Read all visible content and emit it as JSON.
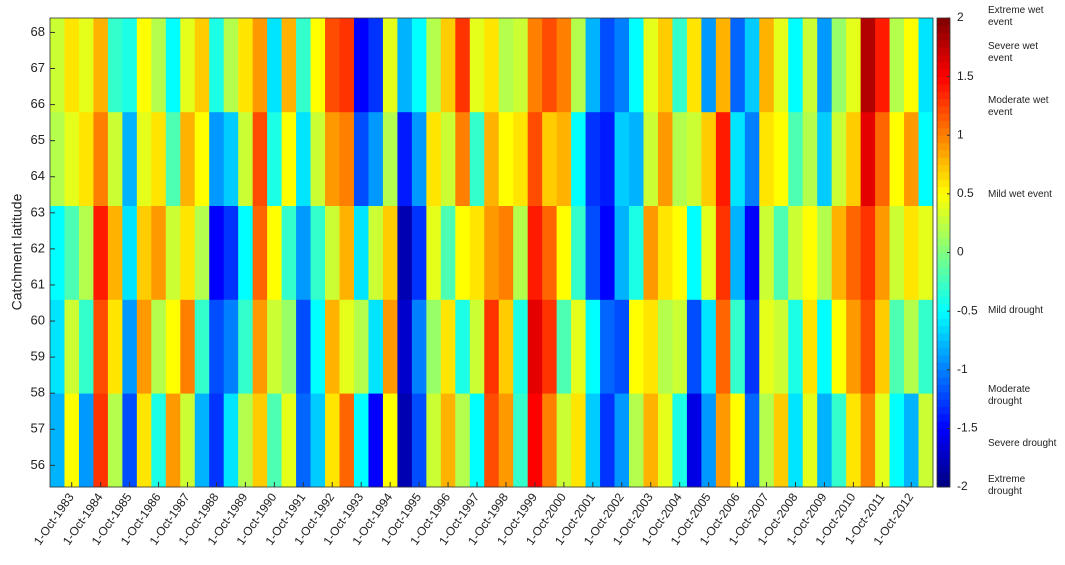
{
  "chart_data": {
    "type": "heatmap",
    "y_label": "Catchment latitude",
    "x": [
      1983.25,
      1983.75,
      1984.25,
      1984.75,
      1985.25,
      1985.75,
      1986.25,
      1986.75,
      1987.25,
      1987.75,
      1988.25,
      1988.75,
      1989.25,
      1989.75,
      1990.25,
      1990.75,
      1991.25,
      1991.75,
      1992.25,
      1992.75,
      1993.25,
      1993.75,
      1994.25,
      1994.75,
      1995.25,
      1995.75,
      1996.25,
      1996.75,
      1997.25,
      1997.75,
      1998.25,
      1998.75,
      1999.25,
      1999.75,
      2000.25,
      2000.75,
      2001.25,
      2001.75,
      2002.25,
      2002.75,
      2003.25,
      2003.75,
      2004.25,
      2004.75,
      2005.25,
      2005.75,
      2006.25,
      2006.75,
      2007.25,
      2007.75,
      2008.25,
      2008.75,
      2009.25,
      2009.75,
      2010.25,
      2010.75,
      2011.25,
      2011.75,
      2012.25,
      2012.75,
      2013.25
    ],
    "y": [
      56.7,
      59.3,
      61.9,
      64.5,
      67.1
    ],
    "values": [
      [
        -0.8,
        -0.6,
        -0.5,
        0.2,
        0.3
      ],
      [
        0.5,
        0.3,
        -0.2,
        0.4,
        0.6
      ],
      [
        -0.9,
        -0.3,
        0.2,
        0.6,
        0.4
      ],
      [
        1.3,
        1.2,
        1.4,
        1.0,
        0.8
      ],
      [
        0.2,
        0.6,
        0.8,
        0.3,
        -0.3
      ],
      [
        -1.2,
        -0.9,
        -0.6,
        -0.8,
        -0.4
      ],
      [
        0.6,
        0.9,
        0.7,
        0.4,
        0.5
      ],
      [
        -0.4,
        0.2,
        0.9,
        0.6,
        0.2
      ],
      [
        0.9,
        0.5,
        0.3,
        -0.2,
        -0.5
      ],
      [
        0.3,
        1.0,
        0.6,
        0.8,
        0.4
      ],
      [
        -0.8,
        -0.3,
        0.2,
        0.5,
        0.7
      ],
      [
        -1.3,
        -1.2,
        -1.5,
        -0.9,
        -0.4
      ],
      [
        -0.6,
        -1.0,
        -1.3,
        -0.7,
        0.2
      ],
      [
        0.2,
        -0.3,
        -0.5,
        0.3,
        0.6
      ],
      [
        0.7,
        0.9,
        1.1,
        1.2,
        0.9
      ],
      [
        -0.2,
        0.3,
        0.5,
        -0.4,
        -0.6
      ],
      [
        0.4,
        0.1,
        -0.3,
        0.5,
        0.8
      ],
      [
        -1.1,
        -1.2,
        -0.9,
        -0.6,
        -0.3
      ],
      [
        -0.7,
        -0.5,
        -0.3,
        0.3,
        0.5
      ],
      [
        0.6,
        0.8,
        0.3,
        0.9,
        1.2
      ],
      [
        1.1,
        0.4,
        0.8,
        1.0,
        1.3
      ],
      [
        -0.5,
        0.2,
        -0.6,
        -1.2,
        -1.5
      ],
      [
        -1.5,
        -0.6,
        0.3,
        -0.9,
        -1.3
      ],
      [
        0.5,
        0.9,
        0.7,
        0.2,
        0.4
      ],
      [
        -1.8,
        -1.7,
        -1.8,
        -1.4,
        -0.8
      ],
      [
        -1.2,
        -1.0,
        -1.3,
        -0.9,
        -0.5
      ],
      [
        0.3,
        0.1,
        0.4,
        0.6,
        0.2
      ],
      [
        0.8,
        0.6,
        -0.2,
        0.3,
        0.7
      ],
      [
        0.2,
        -0.4,
        0.5,
        1.0,
        1.3
      ],
      [
        -0.5,
        0.3,
        0.6,
        -0.3,
        0.4
      ],
      [
        1.2,
        1.3,
        0.9,
        0.8,
        0.6
      ],
      [
        0.9,
        0.7,
        1.0,
        0.5,
        0.2
      ],
      [
        -0.3,
        -0.4,
        0.2,
        0.6,
        0.3
      ],
      [
        1.5,
        1.6,
        1.4,
        1.2,
        1.0
      ],
      [
        1.0,
        1.3,
        1.1,
        0.7,
        1.2
      ],
      [
        0.3,
        -0.2,
        0.5,
        0.8,
        1.0
      ],
      [
        0.6,
        0.4,
        -0.3,
        -0.5,
        0.2
      ],
      [
        -0.7,
        -0.5,
        -1.2,
        -1.3,
        -0.8
      ],
      [
        -1.3,
        -1.1,
        -1.5,
        -1.4,
        -1.2
      ],
      [
        -0.9,
        -1.2,
        -0.8,
        -0.7,
        -1.0
      ],
      [
        0.2,
        0.5,
        -0.4,
        -0.8,
        -0.5
      ],
      [
        0.8,
        0.6,
        0.9,
        0.3,
        0.4
      ],
      [
        0.4,
        0.2,
        0.6,
        0.9,
        0.7
      ],
      [
        -0.4,
        0.3,
        0.5,
        0.2,
        -0.3
      ],
      [
        -1.6,
        -1.2,
        -0.5,
        0.3,
        0.6
      ],
      [
        -0.9,
        -0.6,
        0.4,
        0.7,
        -0.9
      ],
      [
        0.9,
        1.1,
        1.3,
        1.4,
        0.8
      ],
      [
        0.5,
        -0.3,
        -0.8,
        -0.6,
        -1.1
      ],
      [
        -1.1,
        -1.3,
        -1.5,
        -1.0,
        -0.7
      ],
      [
        0.2,
        0.4,
        0.3,
        0.6,
        0.8
      ],
      [
        0.7,
        0.3,
        -0.2,
        0.5,
        0.4
      ],
      [
        -0.6,
        -0.4,
        0.3,
        -0.2,
        -0.5
      ],
      [
        0.4,
        0.6,
        0.5,
        0.2,
        0.3
      ],
      [
        -0.8,
        -0.5,
        0.2,
        -0.7,
        -0.9
      ],
      [
        -0.3,
        0.5,
        0.8,
        0.3,
        0.1
      ],
      [
        0.6,
        0.9,
        1.1,
        0.7,
        0.4
      ],
      [
        1.0,
        1.2,
        1.3,
        1.6,
        1.8
      ],
      [
        0.4,
        0.7,
        0.9,
        1.1,
        1.4
      ],
      [
        -0.5,
        -0.2,
        0.3,
        0.5,
        0.2
      ],
      [
        -0.8,
        0.2,
        0.6,
        0.9,
        0.5
      ],
      [
        0.3,
        -0.3,
        0.4,
        -0.5,
        -0.6
      ]
    ],
    "xlim": [
      1983.0,
      2013.5
    ],
    "ylim": [
      55.4,
      68.4
    ],
    "xticks": [
      {
        "value": 1983.75,
        "label": "1-Oct-1983"
      },
      {
        "value": 1984.75,
        "label": "1-Oct-1984"
      },
      {
        "value": 1985.75,
        "label": "1-Oct-1985"
      },
      {
        "value": 1986.75,
        "label": "1-Oct-1986"
      },
      {
        "value": 1987.75,
        "label": "1-Oct-1987"
      },
      {
        "value": 1988.75,
        "label": "1-Oct-1988"
      },
      {
        "value": 1989.75,
        "label": "1-Oct-1989"
      },
      {
        "value": 1990.75,
        "label": "1-Oct-1990"
      },
      {
        "value": 1991.75,
        "label": "1-Oct-1991"
      },
      {
        "value": 1992.75,
        "label": "1-Oct-1992"
      },
      {
        "value": 1993.75,
        "label": "1-Oct-1993"
      },
      {
        "value": 1994.75,
        "label": "1-Oct-1994"
      },
      {
        "value": 1995.75,
        "label": "1-Oct-1995"
      },
      {
        "value": 1996.75,
        "label": "1-Oct-1996"
      },
      {
        "value": 1997.75,
        "label": "1-Oct-1997"
      },
      {
        "value": 1998.75,
        "label": "1-Oct-1998"
      },
      {
        "value": 1999.75,
        "label": "1-Oct-1999"
      },
      {
        "value": 2000.75,
        "label": "1-Oct-2000"
      },
      {
        "value": 2001.75,
        "label": "1-Oct-2001"
      },
      {
        "value": 2002.75,
        "label": "1-Oct-2002"
      },
      {
        "value": 2003.75,
        "label": "1-Oct-2003"
      },
      {
        "value": 2004.75,
        "label": "1-Oct-2004"
      },
      {
        "value": 2005.75,
        "label": "1-Oct-2005"
      },
      {
        "value": 2006.75,
        "label": "1-Oct-2006"
      },
      {
        "value": 2007.75,
        "label": "1-Oct-2007"
      },
      {
        "value": 2008.75,
        "label": "1-Oct-2008"
      },
      {
        "value": 2009.75,
        "label": "1-Oct-2009"
      },
      {
        "value": 2010.75,
        "label": "1-Oct-2010"
      },
      {
        "value": 2011.75,
        "label": "1-Oct-2011"
      },
      {
        "value": 2012.75,
        "label": "1-Oct-2012"
      }
    ],
    "yticks": [
      56,
      57,
      58,
      59,
      60,
      61,
      62,
      63,
      64,
      65,
      66,
      67,
      68
    ],
    "colormap": "jet",
    "clim": [
      -2,
      2
    ],
    "cticks": [
      2,
      1.5,
      1,
      0.5,
      0,
      -0.5,
      -1,
      -1.5,
      -2
    ],
    "colorbar_labels": [
      "Extreme wet event",
      "Severe wet event",
      "Moderate wet event",
      "Mild wet event",
      "Mild drought",
      "Moderate drought",
      "Severe drought",
      "Extreme drought"
    ]
  }
}
